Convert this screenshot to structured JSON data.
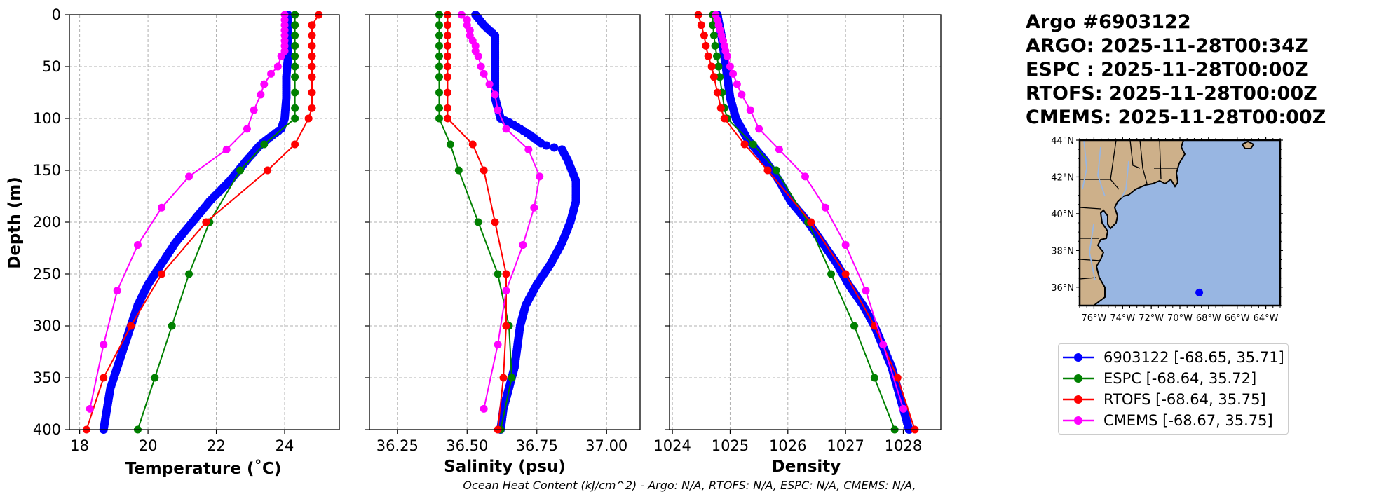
{
  "title_lines": [
    "Argo #6903122",
    "ARGO: 2025-11-28T00:34Z",
    "ESPC : 2025-11-28T00:00Z",
    "RTOFS: 2025-11-28T00:00Z",
    "CMEMS: 2025-11-28T00:00Z"
  ],
  "footer": "Ocean Heat Content (kJ/cm^2) - Argo: N/A,  RTOFS: N/A,  ESPC: N/A,  CMEMS: N/A,",
  "colors": {
    "argo": "#0000ff",
    "espc": "#008000",
    "rtofs": "#ff0000",
    "cmems": "#ff00ff",
    "land": "#cdb08a",
    "ocean": "#98b6e2"
  },
  "legend": [
    {
      "label": "6903122 [-68.65, 35.71]",
      "color": "#0000ff"
    },
    {
      "label": "ESPC [-68.64, 35.72]",
      "color": "#008000"
    },
    {
      "label": "RTOFS [-68.64, 35.75]",
      "color": "#ff0000"
    },
    {
      "label": "CMEMS [-68.67, 35.75]",
      "color": "#ff00ff"
    }
  ],
  "chart_data": [
    {
      "type": "line",
      "title": "",
      "xlabel": "Temperature (˚C)",
      "ylabel": "Depth (m)",
      "xlim": [
        17.7,
        25.6
      ],
      "ylim": [
        400,
        0
      ],
      "xticks": [
        18,
        20,
        22,
        24
      ],
      "yticks": [
        0,
        50,
        100,
        150,
        200,
        250,
        300,
        350,
        400
      ],
      "grid": true,
      "series": [
        {
          "name": "6903122",
          "color": "#0000ff",
          "dense": true,
          "depth": [
            0,
            20,
            40,
            60,
            80,
            100,
            110,
            125,
            140,
            160,
            180,
            200,
            220,
            240,
            260,
            280,
            300,
            320,
            340,
            360,
            380,
            400
          ],
          "values": [
            24.1,
            24.1,
            24.1,
            24.05,
            24.05,
            24.0,
            23.9,
            23.3,
            22.9,
            22.4,
            21.8,
            21.3,
            20.8,
            20.4,
            20.0,
            19.7,
            19.5,
            19.3,
            19.1,
            18.9,
            18.8,
            18.7
          ]
        },
        {
          "name": "ESPC",
          "color": "#008000",
          "dense": false,
          "depth": [
            0,
            10,
            20,
            30,
            40,
            50,
            60,
            75,
            90,
            100,
            125,
            150,
            200,
            250,
            300,
            350,
            400
          ],
          "values": [
            24.3,
            24.3,
            24.3,
            24.3,
            24.3,
            24.3,
            24.3,
            24.3,
            24.3,
            24.3,
            23.4,
            22.7,
            21.8,
            21.2,
            20.7,
            20.2,
            19.7
          ]
        },
        {
          "name": "RTOFS",
          "color": "#ff0000",
          "dense": false,
          "depth": [
            0,
            10,
            20,
            30,
            40,
            50,
            60,
            75,
            90,
            100,
            125,
            150,
            200,
            250,
            300,
            350,
            400
          ],
          "values": [
            25.0,
            24.8,
            24.8,
            24.8,
            24.8,
            24.8,
            24.8,
            24.8,
            24.8,
            24.7,
            24.3,
            23.5,
            21.7,
            20.4,
            19.5,
            18.7,
            18.2
          ]
        },
        {
          "name": "CMEMS",
          "color": "#ff00ff",
          "dense": false,
          "depth": [
            0,
            5,
            10,
            15,
            20,
            25,
            30,
            35,
            40,
            50,
            57,
            67,
            77,
            92,
            110,
            130,
            156,
            186,
            222,
            266,
            318,
            380
          ],
          "values": [
            24.0,
            24.0,
            24.0,
            24.0,
            24.0,
            24.0,
            24.0,
            24.0,
            23.9,
            23.8,
            23.6,
            23.4,
            23.3,
            23.1,
            22.9,
            22.3,
            21.2,
            20.4,
            19.7,
            19.1,
            18.7,
            18.3
          ]
        }
      ]
    },
    {
      "type": "line",
      "title": "",
      "xlabel": "Salinity (psu)",
      "ylabel": "",
      "xlim": [
        36.15,
        37.12
      ],
      "ylim": [
        400,
        0
      ],
      "xticks": [
        36.25,
        36.5,
        36.75,
        37.0
      ],
      "xticklabels": [
        "36.25",
        "36.50",
        "36.75",
        "37.00"
      ],
      "yticks": [
        0,
        50,
        100,
        150,
        200,
        250,
        300,
        350,
        400
      ],
      "grid": true,
      "series": [
        {
          "name": "6903122",
          "color": "#0000ff",
          "dense": true,
          "depth": [
            0,
            10,
            20,
            30,
            40,
            60,
            80,
            100,
            105,
            115,
            125,
            130,
            140,
            160,
            180,
            200,
            220,
            240,
            260,
            280,
            300,
            320,
            340,
            360,
            380,
            400
          ],
          "values": [
            36.53,
            36.56,
            36.6,
            36.6,
            36.6,
            36.6,
            36.6,
            36.62,
            36.66,
            36.72,
            36.77,
            36.84,
            36.86,
            36.89,
            36.89,
            36.87,
            36.84,
            36.8,
            36.75,
            36.71,
            36.69,
            36.68,
            36.67,
            36.65,
            36.63,
            36.62
          ]
        },
        {
          "name": "ESPC",
          "color": "#008000",
          "dense": false,
          "depth": [
            0,
            10,
            20,
            30,
            40,
            50,
            60,
            75,
            90,
            100,
            125,
            150,
            200,
            250,
            300,
            350,
            400
          ],
          "values": [
            36.4,
            36.4,
            36.4,
            36.4,
            36.4,
            36.4,
            36.4,
            36.4,
            36.4,
            36.4,
            36.44,
            36.47,
            36.54,
            36.61,
            36.65,
            36.66,
            36.62
          ]
        },
        {
          "name": "RTOFS",
          "color": "#ff0000",
          "dense": false,
          "depth": [
            0,
            10,
            20,
            30,
            40,
            50,
            60,
            75,
            90,
            100,
            125,
            150,
            200,
            250,
            300,
            350,
            400
          ],
          "values": [
            36.43,
            36.43,
            36.43,
            36.43,
            36.43,
            36.43,
            36.43,
            36.43,
            36.43,
            36.43,
            36.52,
            36.56,
            36.6,
            36.64,
            36.64,
            36.63,
            36.61
          ]
        },
        {
          "name": "CMEMS",
          "color": "#ff00ff",
          "dense": false,
          "depth": [
            0,
            5,
            10,
            15,
            20,
            25,
            30,
            35,
            40,
            50,
            57,
            67,
            77,
            92,
            110,
            130,
            156,
            186,
            222,
            266,
            318,
            380
          ],
          "values": [
            36.48,
            36.5,
            36.5,
            36.51,
            36.51,
            36.52,
            36.53,
            36.53,
            36.54,
            36.55,
            36.56,
            36.58,
            36.6,
            36.61,
            36.64,
            36.72,
            36.76,
            36.74,
            36.7,
            36.64,
            36.61,
            36.56
          ]
        }
      ]
    },
    {
      "type": "line",
      "title": "",
      "xlabel": "Density",
      "ylabel": "",
      "xlim": [
        1023.95,
        1028.65
      ],
      "ylim": [
        400,
        0
      ],
      "xticks": [
        1024,
        1025,
        1026,
        1027,
        1028
      ],
      "yticks": [
        0,
        50,
        100,
        150,
        200,
        250,
        300,
        350,
        400
      ],
      "grid": true,
      "series": [
        {
          "name": "6903122",
          "color": "#0000ff",
          "dense": true,
          "depth": [
            0,
            20,
            40,
            60,
            80,
            100,
            120,
            140,
            160,
            180,
            200,
            220,
            240,
            260,
            280,
            300,
            320,
            340,
            360,
            380,
            400
          ],
          "values": [
            1024.78,
            1024.85,
            1024.9,
            1024.95,
            1025.0,
            1025.1,
            1025.3,
            1025.6,
            1025.85,
            1026.05,
            1026.35,
            1026.6,
            1026.85,
            1027.05,
            1027.3,
            1027.5,
            1027.65,
            1027.8,
            1027.9,
            1028.0,
            1028.1
          ]
        },
        {
          "name": "ESPC",
          "color": "#008000",
          "dense": false,
          "depth": [
            0,
            10,
            20,
            30,
            40,
            50,
            60,
            75,
            90,
            100,
            125,
            150,
            200,
            250,
            300,
            350,
            400
          ],
          "values": [
            1024.7,
            1024.7,
            1024.72,
            1024.74,
            1024.77,
            1024.8,
            1024.82,
            1024.86,
            1024.9,
            1024.95,
            1025.4,
            1025.8,
            1026.35,
            1026.75,
            1027.15,
            1027.5,
            1027.85
          ]
        },
        {
          "name": "RTOFS",
          "color": "#ff0000",
          "dense": false,
          "depth": [
            0,
            10,
            20,
            30,
            40,
            50,
            60,
            75,
            90,
            100,
            125,
            150,
            200,
            250,
            300,
            350,
            400
          ],
          "values": [
            1024.45,
            1024.5,
            1024.55,
            1024.58,
            1024.62,
            1024.68,
            1024.72,
            1024.78,
            1024.84,
            1024.9,
            1025.25,
            1025.65,
            1026.4,
            1027.0,
            1027.5,
            1027.9,
            1028.2
          ]
        },
        {
          "name": "CMEMS",
          "color": "#ff00ff",
          "dense": false,
          "depth": [
            0,
            5,
            10,
            15,
            20,
            25,
            30,
            35,
            40,
            50,
            57,
            67,
            77,
            92,
            110,
            130,
            156,
            186,
            222,
            266,
            318,
            380
          ],
          "values": [
            1024.75,
            1024.78,
            1024.8,
            1024.83,
            1024.85,
            1024.88,
            1024.9,
            1024.92,
            1024.95,
            1025.0,
            1025.05,
            1025.12,
            1025.2,
            1025.35,
            1025.5,
            1025.85,
            1026.3,
            1026.65,
            1027.0,
            1027.35,
            1027.65,
            1028.0
          ]
        }
      ]
    }
  ],
  "map": {
    "lon_ticks": [
      "76°W",
      "74°W",
      "72°W",
      "70°W",
      "68°W",
      "66°W",
      "64°W"
    ],
    "lat_ticks": [
      "44°N",
      "42°N",
      "40°N",
      "38°N",
      "36°N"
    ],
    "float_lon": -68.65,
    "float_lat": 35.71,
    "lon_range": [
      -77.0,
      -63.0
    ],
    "lat_range": [
      35.0,
      44.0
    ]
  }
}
